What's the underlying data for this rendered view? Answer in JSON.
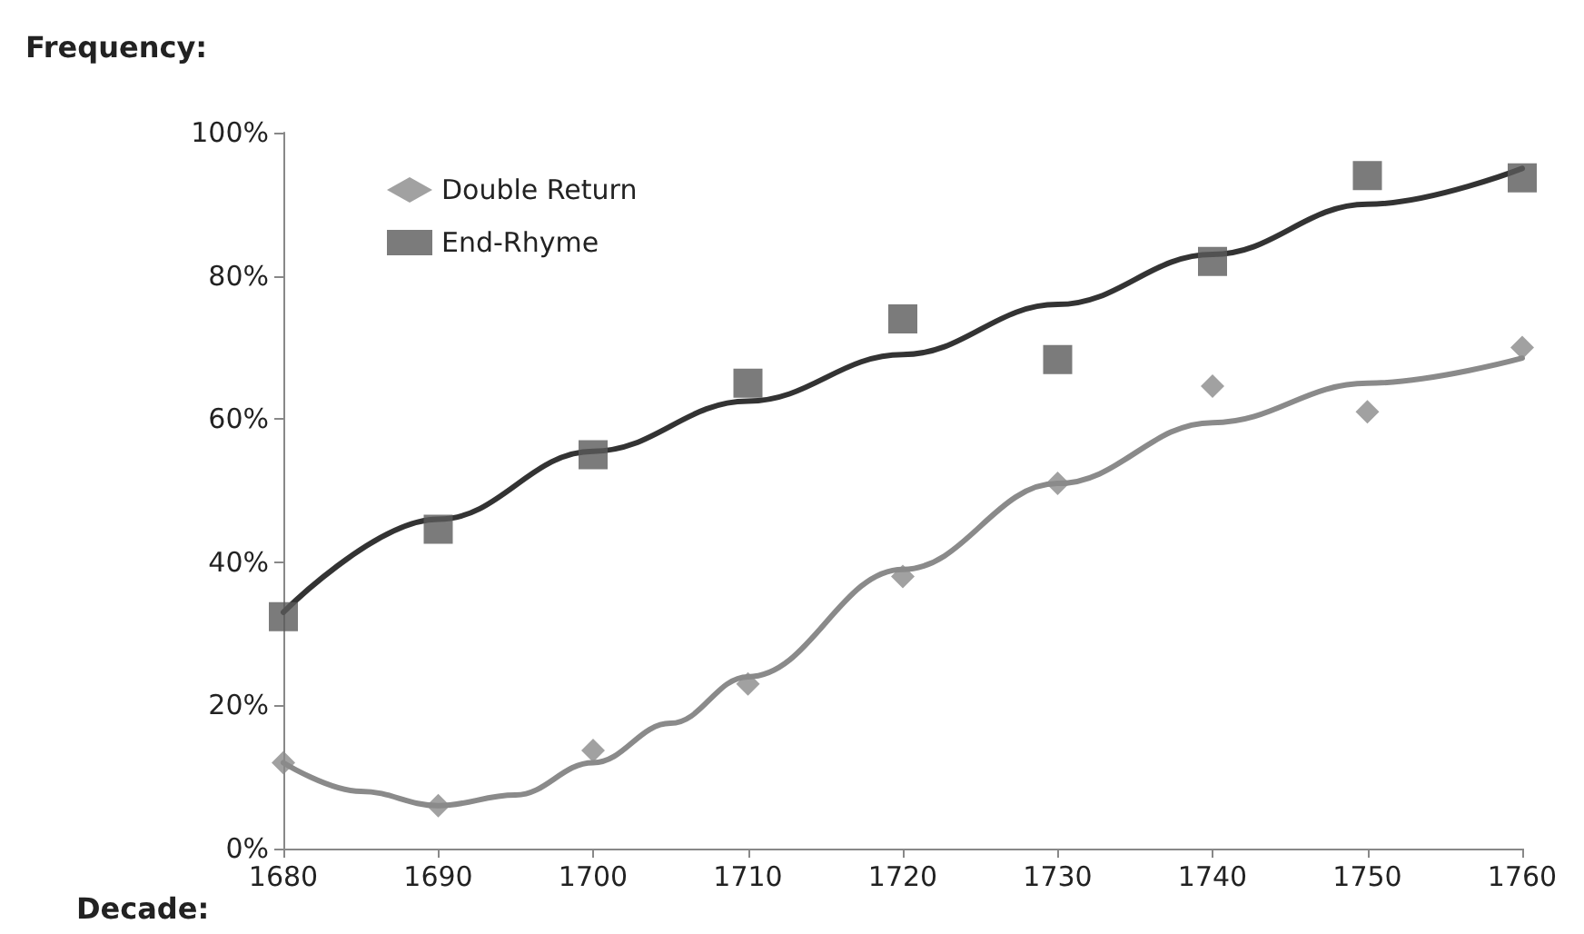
{
  "chart_data": {
    "type": "scatter",
    "xlabel": "Decade:",
    "ylabel": "Frequency:",
    "xlim": [
      1680,
      1760
    ],
    "xticks": [
      1680,
      1690,
      1700,
      1710,
      1720,
      1730,
      1740,
      1750,
      1760
    ],
    "ylim": [
      0,
      100
    ],
    "yticks": [
      {
        "value": 0,
        "label": "0%"
      },
      {
        "value": 20,
        "label": "20%"
      },
      {
        "value": 40,
        "label": "40%"
      },
      {
        "value": 60,
        "label": "60%"
      },
      {
        "value": 80,
        "label": "80%"
      },
      {
        "value": 100,
        "label": "100%"
      }
    ],
    "grid": false,
    "legend": "top left",
    "x": [
      1680,
      1690,
      1700,
      1710,
      1720,
      1730,
      1740,
      1750,
      1760
    ],
    "series": [
      {
        "name": "Double Return",
        "color": "#8a8a8a",
        "marker": "diamond",
        "values": [
          12,
          6,
          13.7,
          23,
          38,
          51,
          64.6,
          61,
          70
        ]
      },
      {
        "name": "End-Rhyme",
        "color": "#5a5a5a",
        "marker": "square",
        "values": [
          32.4,
          44.6,
          55,
          65,
          74,
          68.3,
          82,
          94,
          93.7
        ]
      },
      {
        "type": "line",
        "color": "#8a8a8a",
        "marker": "none",
        "x": [
          1680,
          1685,
          1690,
          1695,
          1700,
          1705,
          1710,
          1720,
          1730,
          1740,
          1750,
          1760
        ],
        "values": [
          12,
          8,
          6,
          7.5,
          12,
          17.5,
          24,
          39,
          51,
          59.5,
          65,
          68.5
        ]
      },
      {
        "type": "line",
        "color": "#333333",
        "marker": "none",
        "x": [
          1680,
          1690,
          1700,
          1710,
          1720,
          1730,
          1740,
          1750,
          1760
        ],
        "values": [
          33,
          46,
          55.5,
          62.5,
          69,
          76,
          83,
          90,
          95
        ]
      }
    ]
  }
}
